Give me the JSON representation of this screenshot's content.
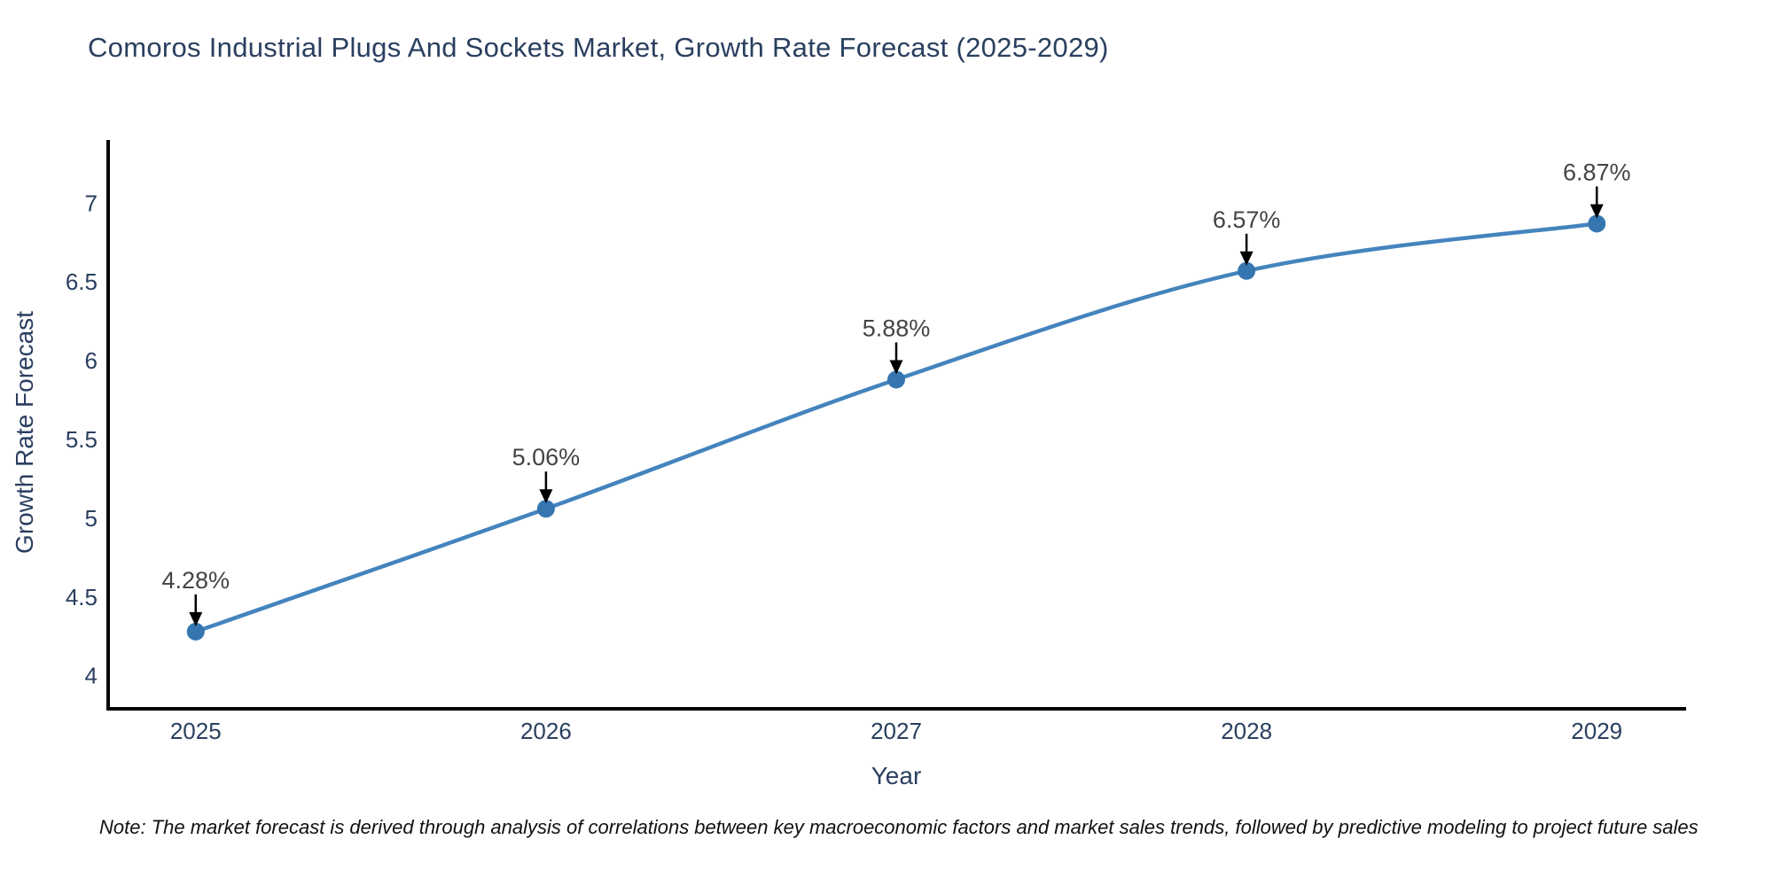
{
  "footnote": "Note: The market forecast is derived through analysis of correlations between key macroeconomic factors and market sales trends, followed by predictive modeling to project future sales",
  "chart_data": {
    "type": "line",
    "title": "Comoros Industrial Plugs And Sockets Market, Growth Rate Forecast (2025-2029)",
    "xlabel": "Year",
    "ylabel": "Growth Rate Forecast",
    "x": [
      2025,
      2026,
      2027,
      2028,
      2029
    ],
    "x_tick_labels": [
      "2025",
      "2026",
      "2027",
      "2028",
      "2029"
    ],
    "series": [
      {
        "name": "Growth Rate Forecast",
        "values": [
          4.28,
          5.06,
          5.88,
          6.57,
          6.87
        ]
      }
    ],
    "point_labels": [
      "4.28%",
      "5.06%",
      "5.88%",
      "6.57%",
      "6.87%"
    ],
    "y_ticks": [
      {
        "value": 4,
        "label": "4"
      },
      {
        "value": 4.5,
        "label": "4.5"
      },
      {
        "value": 5,
        "label": "5"
      },
      {
        "value": 5.5,
        "label": "5.5"
      },
      {
        "value": 6,
        "label": "6"
      },
      {
        "value": 6.5,
        "label": "6.5"
      },
      {
        "value": 7,
        "label": "7"
      }
    ],
    "ylim": [
      3.79,
      7.39
    ],
    "xlim": [
      2024.75,
      2029.25
    ],
    "line_shape": "spline",
    "grid": false,
    "legend": false,
    "annotations_have_arrows": true,
    "colors": {
      "line": "#4484bd",
      "marker": "#3676b0",
      "axis": "#000000",
      "tick_text": "#2a3f5f",
      "annotation_text": "#444444",
      "arrow": "#000000",
      "background": "#ffffff"
    }
  }
}
